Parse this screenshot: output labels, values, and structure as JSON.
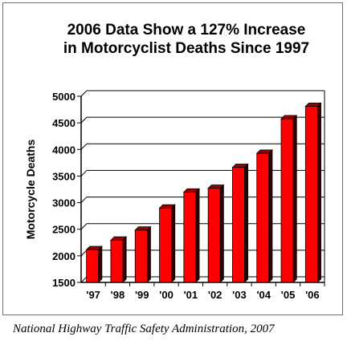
{
  "chart_data": {
    "type": "bar",
    "title_line1": "2006 Data Show a 127% Increase",
    "title_line2": "in Motorcyclist Deaths Since 1997",
    "ylabel": "Motorcycle Deaths",
    "xlabel": "",
    "ylim": [
      1500,
      5000
    ],
    "yticks": [
      1500,
      2000,
      2500,
      3000,
      3500,
      4000,
      4500,
      5000
    ],
    "grid": true,
    "categories": [
      "'97",
      "'98",
      "'99",
      "'00",
      "'01",
      "'02",
      "'03",
      "'04",
      "'05",
      "'06"
    ],
    "values": [
      2116,
      2294,
      2483,
      2897,
      3197,
      3270,
      3661,
      3927,
      4576,
      4810
    ],
    "colors": {
      "bar_face": "#ff0000",
      "bar_dark": "#330000",
      "bar_top": "#990000",
      "grid": "#000000"
    }
  },
  "source": "National Highway Traffic Safety Administration, 2007"
}
